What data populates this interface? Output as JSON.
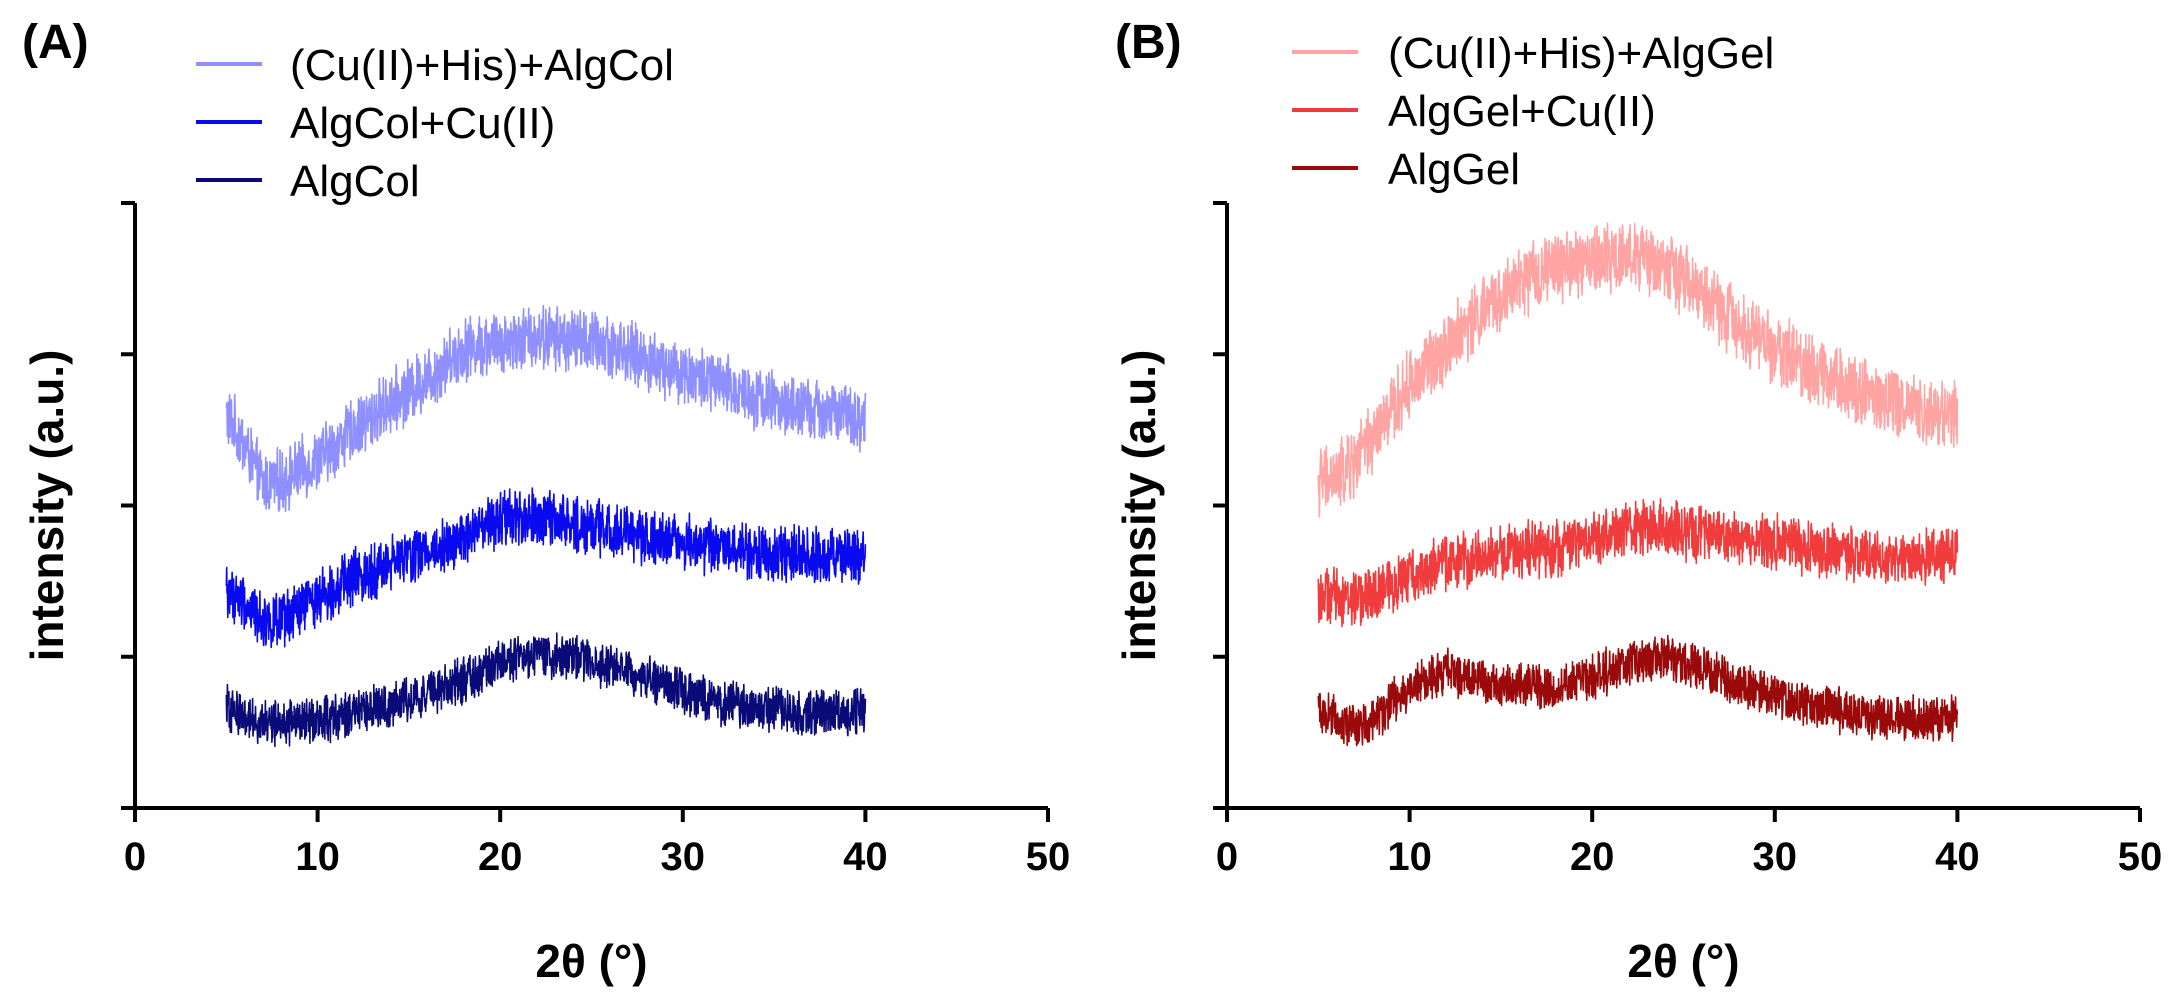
{
  "chart_data": [
    {
      "type": "line",
      "panel_label": "(A)",
      "xlabel": "2θ (°)",
      "ylabel": "intensity (a.u.)",
      "xlim": [
        0,
        50
      ],
      "ylim": [
        0,
        2000
      ],
      "x_ticks": [
        "0",
        "10",
        "20",
        "30",
        "40",
        "50"
      ],
      "y_tick_values": [
        0,
        500,
        1000,
        1500,
        2000
      ],
      "y_tick_labels_visible": false,
      "legend_position": "top-center",
      "grid": false,
      "series": [
        {
          "name": "(Cu(II)+His)+AlgCol",
          "color": "#8F8FFF",
          "x": [
            5,
            6,
            7,
            8,
            10,
            12,
            14,
            16,
            18,
            20,
            22,
            24,
            26,
            28,
            30,
            32,
            34,
            36,
            38,
            40
          ],
          "y": [
            1300,
            1200,
            1070,
            1080,
            1150,
            1250,
            1340,
            1420,
            1520,
            1540,
            1560,
            1550,
            1530,
            1480,
            1440,
            1400,
            1360,
            1320,
            1310,
            1280
          ],
          "noise": 90
        },
        {
          "name": "AlgCol+Cu(II)",
          "color": "#0A0AF0",
          "x": [
            5,
            6,
            7,
            8,
            10,
            12,
            14,
            16,
            18,
            20,
            22,
            24,
            26,
            28,
            30,
            32,
            34,
            36,
            38,
            40
          ],
          "y": [
            720,
            680,
            620,
            610,
            700,
            760,
            810,
            850,
            890,
            950,
            960,
            940,
            920,
            900,
            880,
            860,
            840,
            840,
            830,
            830
          ],
          "noise": 80
        },
        {
          "name": "AlgCol",
          "color": "#0A0A78",
          "x": [
            5,
            6,
            7,
            8,
            10,
            12,
            14,
            16,
            18,
            20,
            22,
            24,
            26,
            28,
            30,
            32,
            34,
            36,
            38,
            40
          ],
          "y": [
            330,
            310,
            280,
            280,
            290,
            310,
            340,
            380,
            420,
            480,
            500,
            500,
            470,
            430,
            390,
            350,
            330,
            320,
            320,
            320
          ],
          "noise": 65
        }
      ]
    },
    {
      "type": "line",
      "panel_label": "(B)",
      "xlabel": "2θ (°)",
      "ylabel": "intensity (a.u.)",
      "xlim": [
        0,
        50
      ],
      "ylim": [
        0,
        2000
      ],
      "x_ticks": [
        "0",
        "10",
        "20",
        "30",
        "40",
        "50"
      ],
      "y_tick_values": [
        0,
        500,
        1000,
        1500,
        2000
      ],
      "y_tick_labels_visible": false,
      "legend_position": "top-center",
      "grid": false,
      "series": [
        {
          "name": "(Cu(II)+His)+AlgGel",
          "color": "#FFA3A3",
          "x": [
            5,
            6,
            7,
            8,
            10,
            12,
            14,
            16,
            18,
            20,
            22,
            24,
            26,
            28,
            30,
            32,
            34,
            36,
            38,
            40
          ],
          "y": [
            1080,
            1090,
            1140,
            1220,
            1400,
            1530,
            1640,
            1730,
            1790,
            1810,
            1830,
            1790,
            1700,
            1600,
            1520,
            1460,
            1400,
            1350,
            1320,
            1300
          ],
          "noise": 100
        },
        {
          "name": "AlgGel+Cu(II)",
          "color": "#F03C3C",
          "x": [
            5,
            6,
            7,
            8,
            10,
            12,
            14,
            16,
            18,
            20,
            22,
            24,
            26,
            28,
            30,
            32,
            34,
            36,
            38,
            40
          ],
          "y": [
            700,
            700,
            690,
            700,
            770,
            810,
            830,
            850,
            860,
            890,
            920,
            930,
            900,
            890,
            880,
            860,
            840,
            830,
            830,
            840
          ],
          "noise": 80
        },
        {
          "name": "AlgGel",
          "color": "#9A0A0A",
          "x": [
            5,
            6,
            7,
            8,
            10,
            12,
            14,
            16,
            18,
            20,
            22,
            24,
            26,
            28,
            30,
            32,
            34,
            36,
            38,
            40
          ],
          "y": [
            330,
            300,
            270,
            300,
            390,
            450,
            420,
            400,
            400,
            430,
            480,
            500,
            460,
            410,
            370,
            340,
            320,
            300,
            290,
            300
          ],
          "noise": 65
        }
      ]
    }
  ]
}
